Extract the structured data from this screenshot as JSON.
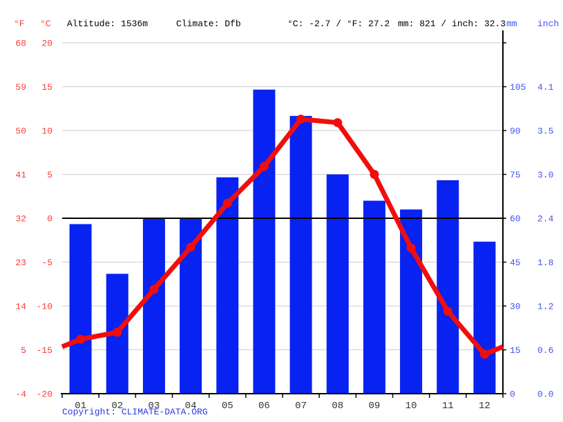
{
  "header": {
    "f_label": "°F",
    "c_label": "°C",
    "altitude": "Altitude: 1536m",
    "climate": "Climate: Dfb",
    "temp_summary": "°C: -2.7 / °F: 27.2",
    "precip_summary": "mm: 821 / inch: 32.3",
    "mm_label": "mm",
    "inch_label": "inch"
  },
  "axes": {
    "left_f": [
      "68",
      "59",
      "50",
      "41",
      "32",
      "23",
      "14",
      "5",
      "-4"
    ],
    "left_c": [
      "20",
      "15",
      "10",
      "5",
      "0",
      "-5",
      "-10",
      "-15",
      "-20"
    ],
    "left_c_numeric": [
      20,
      15,
      10,
      5,
      0,
      -5,
      -10,
      -15,
      -20
    ],
    "right_mm": [
      "105",
      "90",
      "75",
      "60",
      "45",
      "30",
      "15",
      "0"
    ],
    "right_inch": [
      "4.1",
      "3.5",
      "3.0",
      "2.4",
      "1.8",
      "1.2",
      "0.6",
      "0.0"
    ],
    "temp_range_c": [
      -20,
      20
    ],
    "precip_range_mm": [
      0,
      120
    ]
  },
  "chart_data": {
    "type": "bar",
    "title": "Climate graph",
    "categories": [
      "01",
      "02",
      "03",
      "04",
      "05",
      "06",
      "07",
      "08",
      "09",
      "10",
      "11",
      "12"
    ],
    "series": [
      {
        "name": "precipitation_mm",
        "type": "bar",
        "values": [
          58,
          41,
          60,
          60,
          74,
          104,
          95,
          75,
          66,
          63,
          73,
          52
        ]
      },
      {
        "name": "temperature_c",
        "type": "line",
        "values": [
          -13.8,
          -13.0,
          -8.1,
          -3.3,
          1.7,
          5.9,
          11.3,
          10.9,
          5.0,
          -3.4,
          -10.6,
          -15.5
        ]
      }
    ],
    "line_edge_value_c": -14.65,
    "ylim_temp_c": [
      -20,
      20
    ],
    "ylim_precip_mm": [
      0,
      120
    ],
    "annual_mean_temp_c": -2.7,
    "annual_precip_mm": 821,
    "grid": true,
    "legend_position": "none"
  },
  "footer": {
    "copyright": "Copyright: ",
    "link": "CLIMATE-DATA.ORG"
  },
  "colors": {
    "bar_blue": "#0822f2",
    "line_red": "#f20d0d",
    "axis_text_red": "#fa3c3c",
    "axis_text_blue": "#4353f1",
    "month_text": "#343434",
    "grid_gray": "#cccccc",
    "axis_black": "#000000"
  }
}
